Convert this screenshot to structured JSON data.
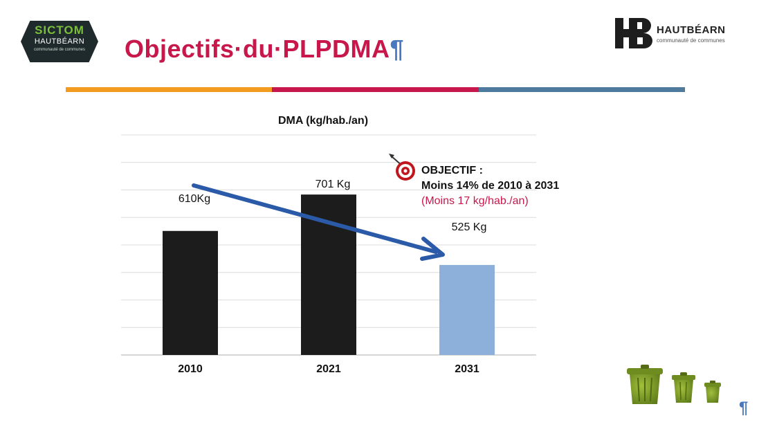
{
  "header": {
    "title": "Objectifs·du·PLPDMA",
    "pilcrow": "¶"
  },
  "logos": {
    "left": {
      "line1": "SICTOM",
      "line2": "HAUTBÉARN",
      "line3": "communauté de communes"
    },
    "right": {
      "brand": "HAUTBÉARN",
      "sub": "communauté de communes"
    }
  },
  "colors": {
    "title": "#c8174a",
    "rule": [
      "#f39b1e",
      "#c8174a",
      "#4e7b9d"
    ],
    "bar_dark": "#1c1c1c",
    "bar_target": "#8db0da",
    "arrow": "#2a5aa8",
    "highlight": "#c8174a"
  },
  "chart_data": {
    "type": "bar",
    "title": "DMA (kg/hab./an)",
    "categories": [
      "2010",
      "2021",
      "2031"
    ],
    "values": [
      610,
      701,
      525
    ],
    "data_labels": [
      "610Kg",
      "701 Kg",
      "525 Kg"
    ],
    "ylim": [
      300,
      850
    ],
    "grid": true,
    "xlabel": "",
    "ylabel": ""
  },
  "annotation": {
    "line1": "OBJECTIF :",
    "line2": "Moins 14% de 2010 à 2031",
    "line3": "(Moins 17 kg/hab./an)",
    "icon": "target-icon"
  },
  "decor": {
    "icon": "trash-bins-icon"
  },
  "footer": {
    "mark": "¶"
  }
}
